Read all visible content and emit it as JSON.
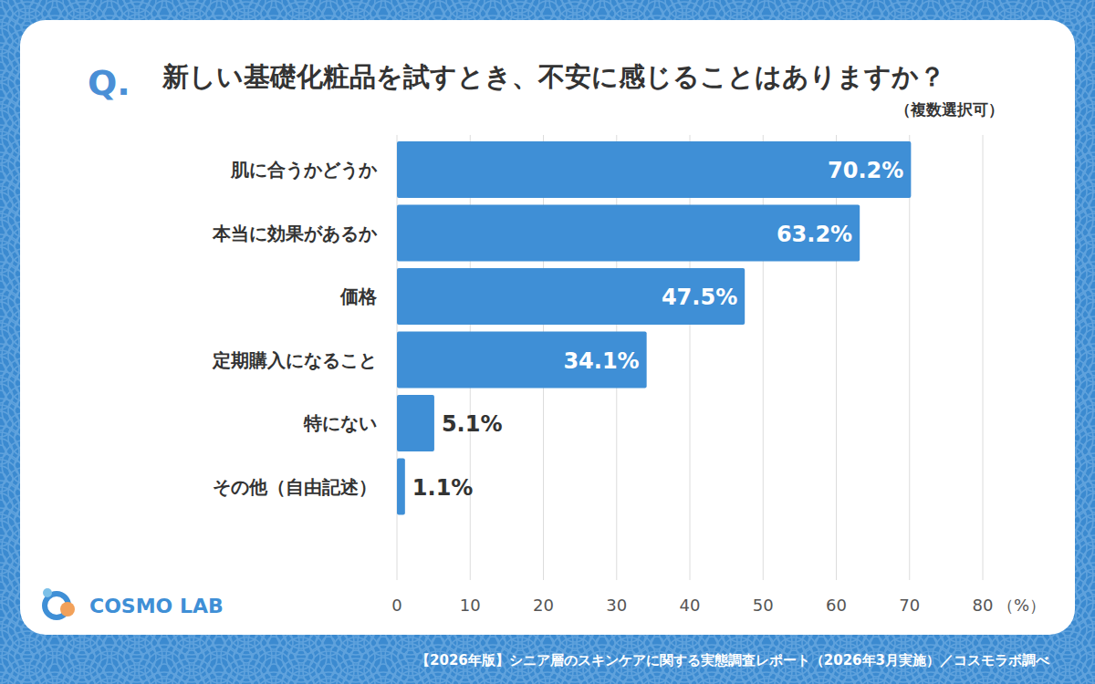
{
  "chart_data": {
    "type": "bar",
    "title_prefix": "Q.",
    "title": "新しい基礎化粧品を試すとき、不安に感じることはありますか？",
    "subtitle": "（複数選択可）",
    "categories": [
      "肌に合うかどうか",
      "本当に効果があるか",
      "価格",
      "定期購入になること",
      "特にない",
      "その他（自由記述）"
    ],
    "values": [
      70.2,
      63.2,
      47.5,
      34.1,
      5.1,
      1.1
    ],
    "value_labels": [
      "70.2%",
      "63.2%",
      "47.5%",
      "34.1%",
      "5.1%",
      "1.1%"
    ],
    "color": "#3f8fd6",
    "orientation": "horizontal",
    "data_labels": true,
    "grid": true,
    "xlim": [
      0,
      80
    ],
    "xticks": [
      0,
      10,
      20,
      30,
      40,
      50,
      60,
      70,
      80
    ],
    "x_label": "（%）",
    "logo": "COSMO LAB",
    "source": "【2026年版】シニア層のスキンケアに関する実態調査レポート（2026年3月実施）／コスモラボ調べ"
  }
}
